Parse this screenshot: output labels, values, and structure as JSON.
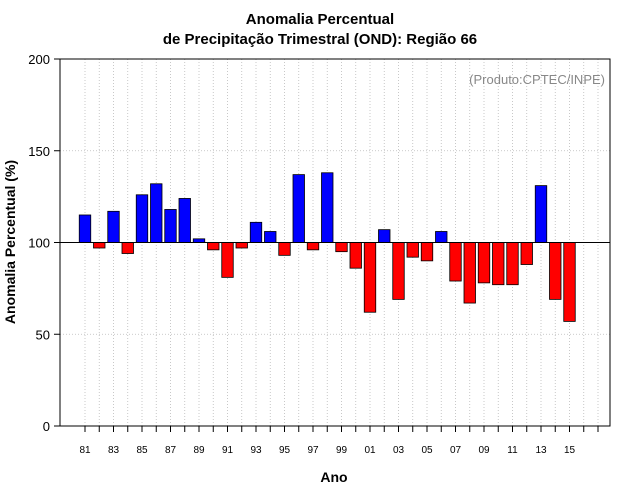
{
  "chart_data": {
    "type": "bar",
    "title": "Anomalia Percentual",
    "subtitle": "de Precipitação Trimestral (OND): Região 66",
    "xlabel": "Ano",
    "ylabel": "Anomalia Percentual (%)",
    "annotation": "(Produto:CPTEC/INPE)",
    "baseline": 100,
    "ylim": [
      0,
      200
    ],
    "yticks": [
      0,
      50,
      100,
      150,
      200
    ],
    "grid": true,
    "colors": {
      "above": "#0000ff",
      "below": "#ff0000",
      "baseline_line": "#000000",
      "grid": "#bbbbbb"
    },
    "categories": [
      "81",
      "82",
      "83",
      "84",
      "85",
      "86",
      "87",
      "88",
      "89",
      "90",
      "91",
      "92",
      "93",
      "94",
      "95",
      "96",
      "97",
      "98",
      "99",
      "00",
      "01",
      "02",
      "03",
      "04",
      "05",
      "06",
      "07",
      "08",
      "09",
      "10",
      "11",
      "12",
      "13",
      "14",
      "15",
      "16",
      "17"
    ],
    "tick_labels": [
      "81",
      "83",
      "85",
      "87",
      "89",
      "91",
      "93",
      "95",
      "97",
      "99",
      "01",
      "03",
      "05",
      "07",
      "09",
      "11",
      "13",
      "15"
    ],
    "values": [
      115,
      97,
      117,
      94,
      126,
      132,
      118,
      124,
      102,
      96,
      81,
      97,
      111,
      106,
      93,
      137,
      96,
      138,
      95,
      86,
      62,
      107,
      69,
      92,
      90,
      106,
      79,
      67,
      78,
      77,
      77,
      88,
      131,
      69,
      57,
      null,
      null
    ]
  }
}
